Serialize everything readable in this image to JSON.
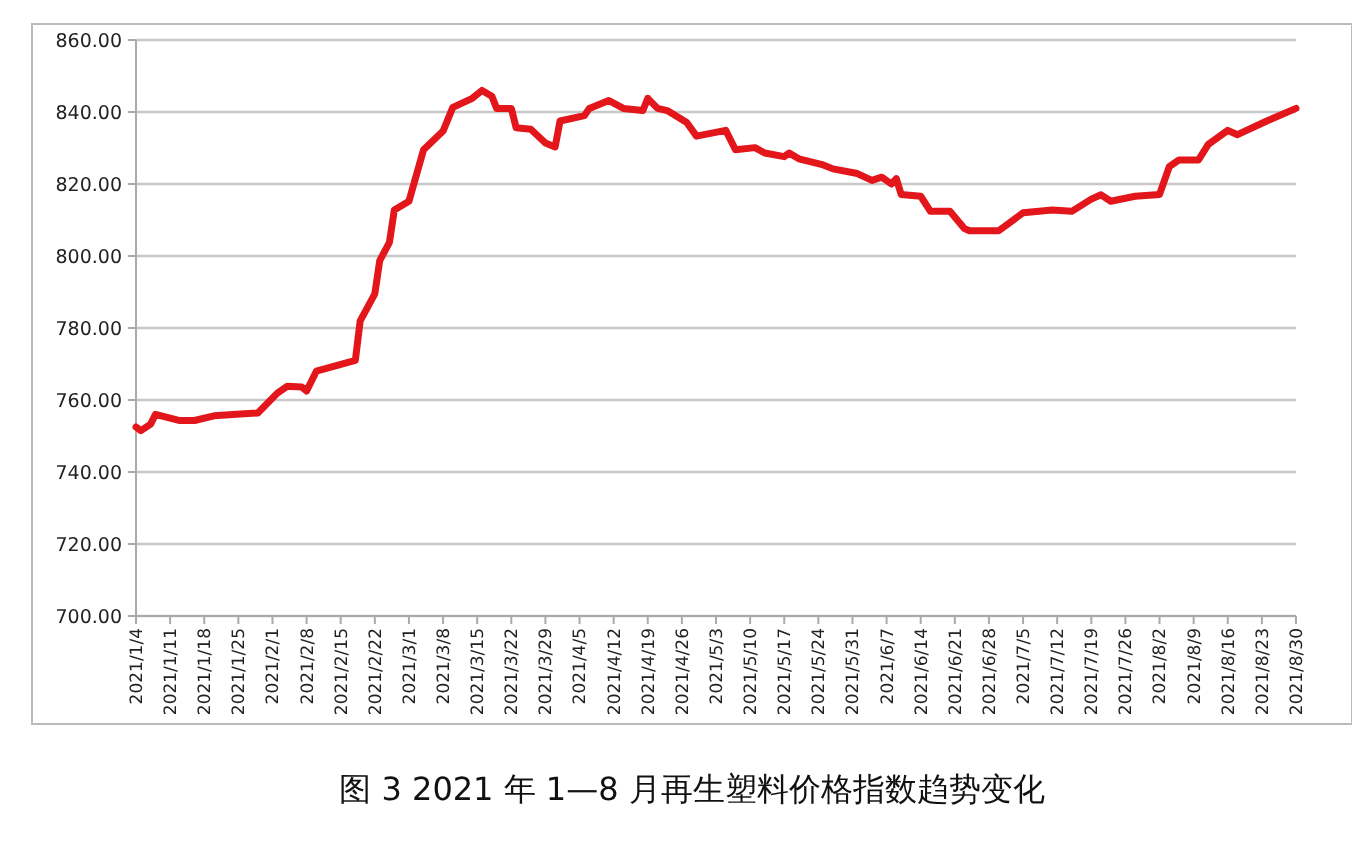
{
  "chart_data": {
    "type": "line",
    "title": "图 3 2021 年 1—8 月再生塑料价格指数趋势变化",
    "x": [
      "2021-01-04",
      "2021-01-05",
      "2021-01-07",
      "2021-01-08",
      "2021-01-13",
      "2021-01-16",
      "2021-01-20",
      "2021-01-29",
      "2021-02-02",
      "2021-02-04",
      "2021-02-07",
      "2021-02-08",
      "2021-02-10",
      "2021-02-18",
      "2021-02-19",
      "2021-02-22",
      "2021-02-23",
      "2021-02-25",
      "2021-02-26",
      "2021-03-01",
      "2021-03-04",
      "2021-03-08",
      "2021-03-10",
      "2021-03-14",
      "2021-03-16",
      "2021-03-18",
      "2021-03-19",
      "2021-03-22",
      "2021-03-23",
      "2021-03-26",
      "2021-03-29",
      "2021-03-31",
      "2021-04-01",
      "2021-04-06",
      "2021-04-07",
      "2021-04-11",
      "2021-04-14",
      "2021-04-18",
      "2021-04-19",
      "2021-04-21",
      "2021-04-23",
      "2021-04-27",
      "2021-04-29",
      "2021-05-05",
      "2021-05-07",
      "2021-05-11",
      "2021-05-13",
      "2021-05-17",
      "2021-05-18",
      "2021-05-20",
      "2021-05-25",
      "2021-05-27",
      "2021-06-01",
      "2021-06-04",
      "2021-06-06",
      "2021-06-08",
      "2021-06-09",
      "2021-06-10",
      "2021-06-14",
      "2021-06-16",
      "2021-06-20",
      "2021-06-23",
      "2021-06-24",
      "2021-06-30",
      "2021-07-05",
      "2021-07-11",
      "2021-07-15",
      "2021-07-19",
      "2021-07-21",
      "2021-07-23",
      "2021-07-28",
      "2021-08-02",
      "2021-08-04",
      "2021-08-06",
      "2021-08-10",
      "2021-08-12",
      "2021-08-16",
      "2021-08-18",
      "2021-08-24",
      "2021-08-30"
    ],
    "series": [
      {
        "color": "#e3161b",
        "values": [
          752.5,
          751.5,
          753.3,
          756,
          754.3,
          754.3,
          755.6,
          756.4,
          761.9,
          763.8,
          763.6,
          762.5,
          768,
          771,
          782,
          789.5,
          798.7,
          803.8,
          812.8,
          815.2,
          829.5,
          834.7,
          841.3,
          843.8,
          846,
          844.4,
          841,
          841,
          835.6,
          835.2,
          831.4,
          830.3,
          837.5,
          839,
          841,
          843.2,
          841,
          840.4,
          843.8,
          841,
          840.4,
          837.1,
          833.3,
          834.9,
          829.5,
          830.1,
          828.6,
          827.6,
          828.6,
          827,
          825.3,
          824.2,
          822.9,
          821,
          821.9,
          820,
          821.5,
          817.1,
          816.6,
          812.4,
          812.4,
          807.6,
          807,
          807,
          812,
          812.8,
          812.4,
          815.8,
          817,
          815.2,
          816.6,
          817.1,
          824.8,
          826.7,
          826.7,
          831,
          834.9,
          833.7,
          837.5,
          841
        ]
      }
    ],
    "xlim": [
      "2021-01-04",
      "2021-08-30"
    ],
    "xticks": [
      {
        "value": "2021-01-04",
        "label": "2021/1/4"
      },
      {
        "value": "2021-01-11",
        "label": "2021/1/11"
      },
      {
        "value": "2021-01-18",
        "label": "2021/1/18"
      },
      {
        "value": "2021-01-25",
        "label": "2021/1/25"
      },
      {
        "value": "2021-02-01",
        "label": "2021/2/1"
      },
      {
        "value": "2021-02-08",
        "label": "2021/2/8"
      },
      {
        "value": "2021-02-15",
        "label": "2021/2/15"
      },
      {
        "value": "2021-02-22",
        "label": "2021/2/22"
      },
      {
        "value": "2021-03-01",
        "label": "2021/3/1"
      },
      {
        "value": "2021-03-08",
        "label": "2021/3/8"
      },
      {
        "value": "2021-03-15",
        "label": "2021/3/15"
      },
      {
        "value": "2021-03-22",
        "label": "2021/3/22"
      },
      {
        "value": "2021-03-29",
        "label": "2021/3/29"
      },
      {
        "value": "2021-04-05",
        "label": "2021/4/5"
      },
      {
        "value": "2021-04-12",
        "label": "2021/4/12"
      },
      {
        "value": "2021-04-19",
        "label": "2021/4/19"
      },
      {
        "value": "2021-04-26",
        "label": "2021/4/26"
      },
      {
        "value": "2021-05-03",
        "label": "2021/5/3"
      },
      {
        "value": "2021-05-10",
        "label": "2021/5/10"
      },
      {
        "value": "2021-05-17",
        "label": "2021/5/17"
      },
      {
        "value": "2021-05-24",
        "label": "2021/5/24"
      },
      {
        "value": "2021-05-31",
        "label": "2021/5/31"
      },
      {
        "value": "2021-06-07",
        "label": "2021/6/7"
      },
      {
        "value": "2021-06-14",
        "label": "2021/6/14"
      },
      {
        "value": "2021-06-21",
        "label": "2021/6/21"
      },
      {
        "value": "2021-06-28",
        "label": "2021/6/28"
      },
      {
        "value": "2021-07-05",
        "label": "2021/7/5"
      },
      {
        "value": "2021-07-12",
        "label": "2021/7/12"
      },
      {
        "value": "2021-07-19",
        "label": "2021/7/19"
      },
      {
        "value": "2021-07-26",
        "label": "2021/7/26"
      },
      {
        "value": "2021-08-02",
        "label": "2021/8/2"
      },
      {
        "value": "2021-08-09",
        "label": "2021/8/9"
      },
      {
        "value": "2021-08-16",
        "label": "2021/8/16"
      },
      {
        "value": "2021-08-23",
        "label": "2021/8/23"
      },
      {
        "value": "2021-08-30",
        "label": "2021/8/30"
      }
    ],
    "ylim": [
      700,
      860
    ],
    "yticks": [
      {
        "value": 700,
        "label": "700.00"
      },
      {
        "value": 720,
        "label": "720.00"
      },
      {
        "value": 740,
        "label": "740.00"
      },
      {
        "value": 760,
        "label": "760.00"
      },
      {
        "value": 780,
        "label": "780.00"
      },
      {
        "value": 800,
        "label": "800.00"
      },
      {
        "value": 820,
        "label": "820.00"
      },
      {
        "value": 840,
        "label": "840.00"
      },
      {
        "value": 860,
        "label": "860.00"
      }
    ],
    "grid": "y",
    "line_style": "solid"
  }
}
